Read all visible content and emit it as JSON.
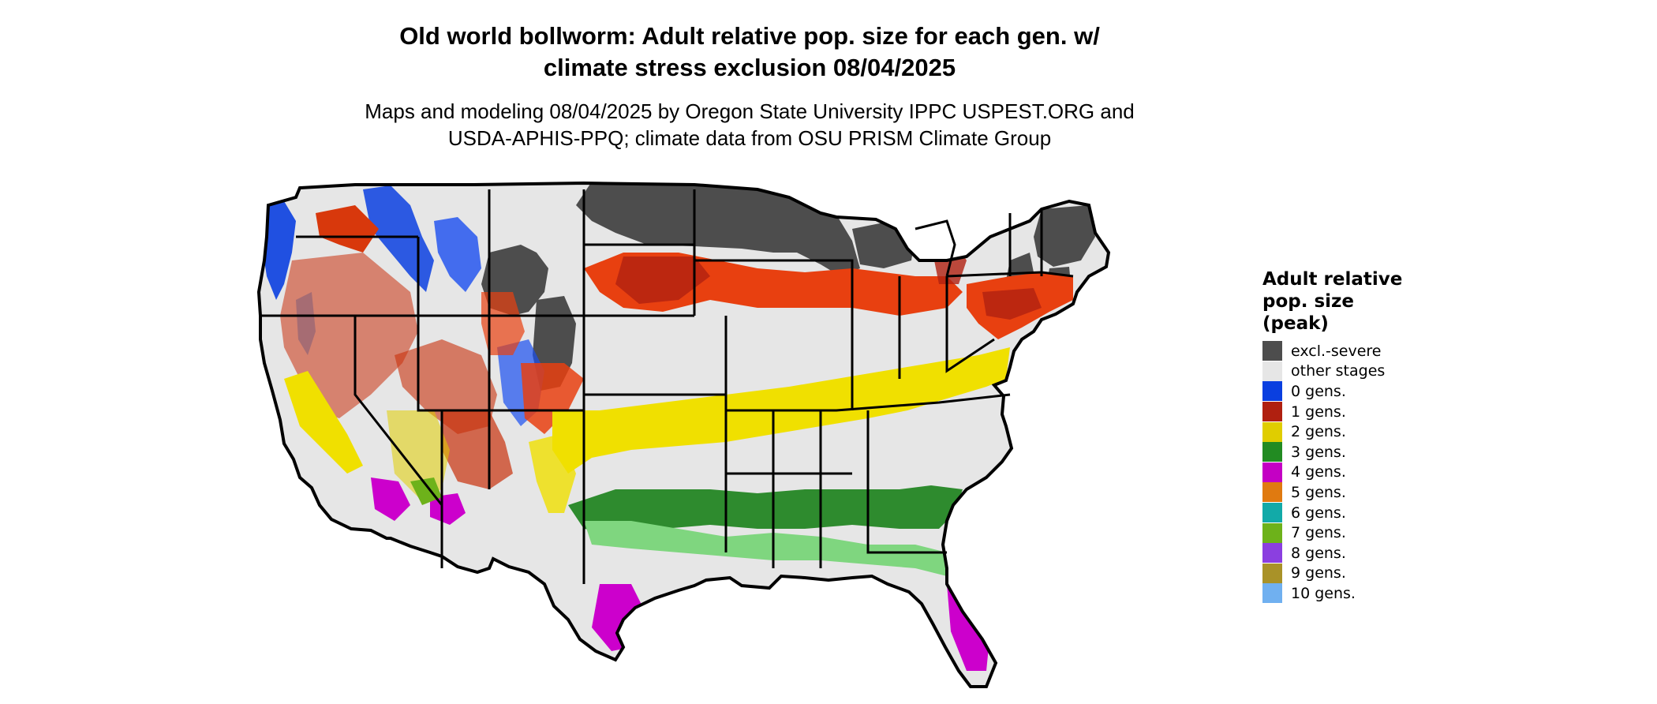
{
  "title": {
    "line1": "Old world bollworm: Adult relative pop. size for each gen. w/",
    "line2": "climate stress exclusion 08/04/2025"
  },
  "subtitle": {
    "line1": "Maps and modeling 08/04/2025 by Oregon State University IPPC USPEST.ORG and",
    "line2": "USDA-APHIS-PPQ; climate data from OSU PRISM Climate Group"
  },
  "legend": {
    "title_lines": [
      "Adult relative",
      "pop. size",
      "(peak)"
    ],
    "items": [
      {
        "label": "excl.-severe",
        "color": "#4d4d4d"
      },
      {
        "label": "other stages",
        "color": "#e6e6e6"
      },
      {
        "label": "0 gens.",
        "color": "#0a3fe0"
      },
      {
        "label": "1 gens.",
        "color": "#b02010"
      },
      {
        "label": "2 gens.",
        "color": "#e0cd00"
      },
      {
        "label": "3 gens.",
        "color": "#228b22"
      },
      {
        "label": "4 gens.",
        "color": "#c400c4"
      },
      {
        "label": "5 gens.",
        "color": "#e07a10"
      },
      {
        "label": "6 gens.",
        "color": "#12aaa8"
      },
      {
        "label": "7 gens.",
        "color": "#6db21a"
      },
      {
        "label": "8 gens.",
        "color": "#8b3fe0"
      },
      {
        "label": "9 gens.",
        "color": "#a99228"
      },
      {
        "label": "10 gens.",
        "color": "#70b0f0"
      }
    ]
  },
  "map": {
    "region": "contiguous-united-states",
    "colors": {
      "background": "#e6e6e6",
      "excluded": "#4d4d4d",
      "zero": "#0a3fe0",
      "one": "#e84010",
      "one_dark": "#b02010",
      "two": "#f0e000",
      "three": "#2e8b2e",
      "three_light": "#7fd67f",
      "four": "#cc00cc",
      "seven": "#6db21a",
      "ten": "#70b0f0",
      "five": "#e07a10",
      "border": "#000000"
    }
  }
}
